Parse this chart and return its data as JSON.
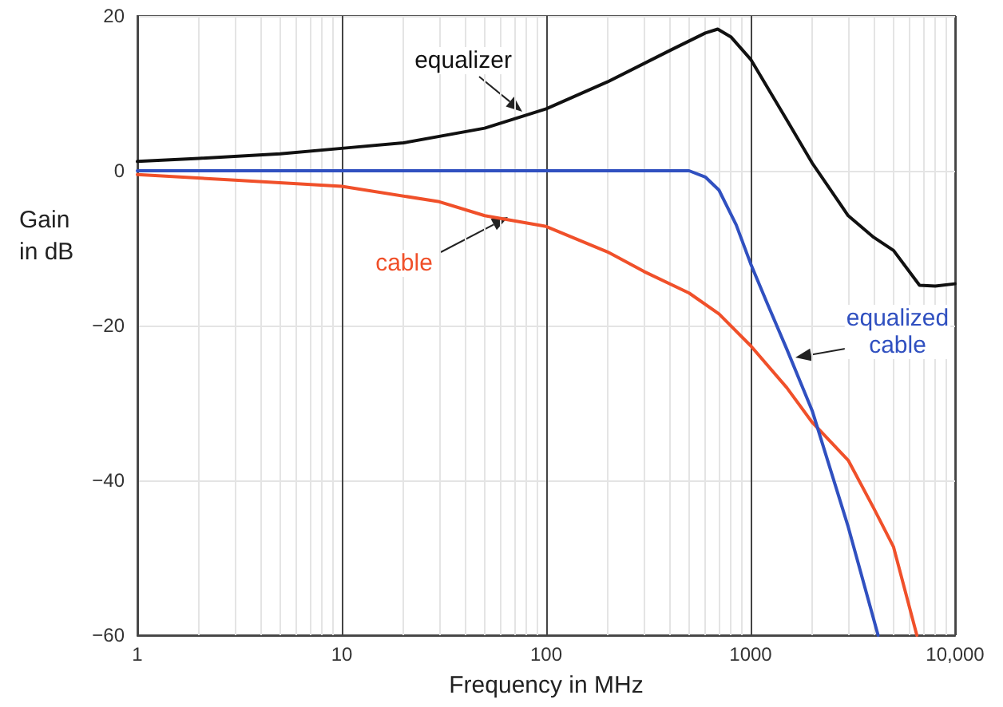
{
  "chart_data": {
    "type": "line",
    "xlabel": "Frequency in MHz",
    "ylabel": "Gain\nin dB",
    "log": "x",
    "grid": true,
    "legend": false,
    "marker": "none",
    "line_style": "solid",
    "xlim": [
      1,
      10000
    ],
    "xticks": [
      1,
      10,
      100,
      1000,
      {
        "value": 10000,
        "label": "10,000"
      }
    ],
    "ylim": [
      -60,
      20
    ],
    "yticks": [
      -60,
      -40,
      -20,
      0,
      20
    ],
    "series": [
      {
        "name": "equalizer",
        "color": "#111111",
        "x": [
          1,
          2,
          5,
          10,
          20,
          50,
          100,
          200,
          400,
          600,
          690,
          800,
          1000,
          1500,
          2000,
          3000,
          4000,
          5000,
          6700,
          8000,
          10000
        ],
        "values": [
          1.2,
          1.6,
          2.2,
          2.9,
          3.6,
          5.5,
          8,
          11.5,
          15.5,
          17.8,
          18.3,
          17.3,
          14.4,
          6.6,
          1,
          -5.8,
          -8.6,
          -10.3,
          -14.8,
          -14.9,
          -14.6
        ]
      },
      {
        "name": "cable",
        "color": "#f0502a",
        "x": [
          1,
          3,
          10,
          30,
          50,
          100,
          200,
          300,
          500,
          700,
          1000,
          1500,
          2000,
          3000,
          4000,
          5000,
          6500
        ],
        "values": [
          -0.5,
          -1.2,
          -2,
          -4,
          -5.8,
          -7.2,
          -10.5,
          -13,
          -15.8,
          -18.5,
          -22.6,
          -28,
          -32.5,
          -37.4,
          -43.6,
          -48.6,
          -60
        ]
      },
      {
        "name": "equalized\ncable",
        "color": "#3050c0",
        "x": [
          1,
          10,
          100,
          500,
          600,
          700,
          850,
          1000,
          1200,
          1500,
          2000,
          3000,
          4200
        ],
        "values": [
          0,
          0,
          0,
          0,
          -0.8,
          -2.5,
          -7,
          -12,
          -17,
          -23,
          -31,
          -46,
          -60
        ]
      }
    ]
  }
}
